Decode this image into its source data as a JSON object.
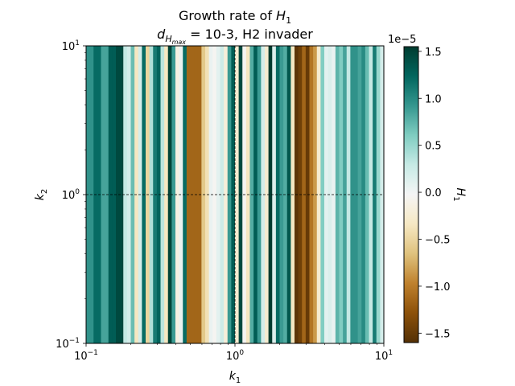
{
  "chart_data": {
    "type": "heatmap",
    "title": {
      "line1_prefix": "Growth rate of ",
      "line1_var": "H",
      "line1_sub": "1",
      "line2_var": "d",
      "line2_sub": "H",
      "line2_subsub": "max",
      "line2_rest": " = 10-3, H2 invader"
    },
    "xlabel": {
      "var": "k",
      "sub": "1"
    },
    "ylabel": {
      "var": "k",
      "sub": "2"
    },
    "x_scale": "log",
    "y_scale": "log",
    "xlim": [
      0.1,
      10
    ],
    "ylim": [
      0.1,
      10
    ],
    "x_ticks": [
      {
        "base": "10",
        "exp": "−1"
      },
      {
        "base": "10",
        "exp": "0"
      },
      {
        "base": "10",
        "exp": "1"
      }
    ],
    "y_ticks": [
      {
        "base": "10",
        "exp": "−1"
      },
      {
        "base": "10",
        "exp": "0"
      },
      {
        "base": "10",
        "exp": "1"
      }
    ],
    "reference_lines": {
      "x": 1,
      "y": 1,
      "style": "dashed"
    },
    "colormap": "BrBG",
    "colorbar": {
      "label_var": "H",
      "label_sub": "1",
      "multiplier": "1e−5",
      "range": [
        -1.6,
        1.55
      ],
      "ticks": [
        "−1.5",
        "−1.0",
        "−0.5",
        "0.0",
        "0.5",
        "1.0",
        "1.5"
      ],
      "tick_values": [
        -1.5,
        -1.0,
        -0.5,
        0.0,
        0.5,
        1.0,
        1.5
      ]
    },
    "column_count": 40,
    "values_note_units": "1e-5",
    "values": [
      0.95,
      0.95,
      1.2,
      1.2,
      0.85,
      0.85,
      1.3,
      1.3,
      1.45,
      1.45,
      0.3,
      0.2,
      0.7,
      -0.35,
      0.2,
      1.2,
      -0.5,
      0.4,
      1.1,
      1.25,
      0.35,
      -0.35,
      1.5,
      0.9,
      -0.15,
      0.05,
      1.2,
      -1.15,
      -1.15,
      -1.15,
      -1.15,
      -0.6,
      -0.4,
      0.05,
      -0.05,
      0.1,
      0.25,
      -0.2,
      0.9,
      1.3,
      -0.25,
      1.45,
      -0.05,
      -0.35,
      0.8,
      1.3,
      0.9,
      0.2,
      -0.25,
      1.55,
      0.15,
      1.2,
      0.9,
      0.8,
      1.35,
      -0.35,
      -1.55,
      -1.45,
      -1.15,
      -1.5,
      -1.05,
      -0.85,
      -0.25,
      0.6,
      0.1,
      0.15,
      0.05,
      0.75,
      0.6,
      0.85,
      0.3,
      0.95,
      0.95,
      0.85,
      1.0,
      0.7,
      0.3,
      1.1,
      0.5,
      0.2
    ],
    "grid": false,
    "legend": "none"
  },
  "colors": {
    "ref_line": "#000000",
    "axis": "#000000"
  }
}
